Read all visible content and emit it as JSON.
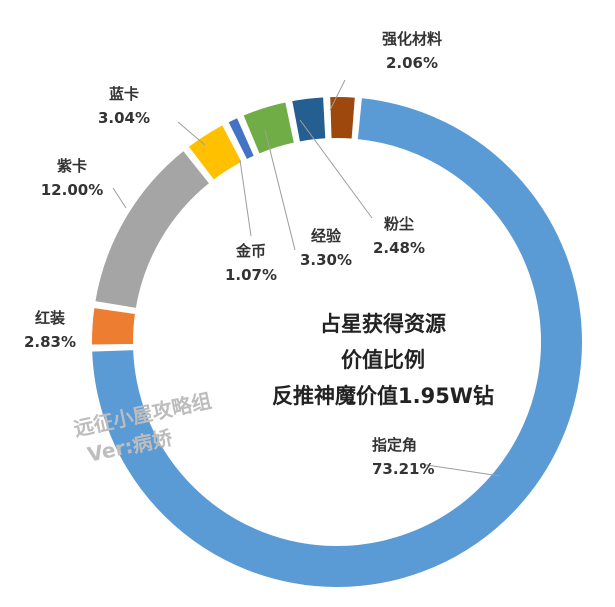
{
  "chart_data": {
    "type": "donut",
    "center_text": [
      "占星获得资源",
      "价值比例",
      "反推神魔价值1.95W钻"
    ],
    "series": [
      {
        "name": "指定角",
        "value": 73.21,
        "label": "73.21%",
        "color": "#5B9BD5"
      },
      {
        "name": "红装",
        "value": 2.83,
        "label": "2.83%",
        "color": "#ED7D31"
      },
      {
        "name": "紫卡",
        "value": 12.0,
        "label": "12.00%",
        "color": "#A5A5A5"
      },
      {
        "name": "蓝卡",
        "value": 3.04,
        "label": "3.04%",
        "color": "#FFC000"
      },
      {
        "name": "金币",
        "value": 1.07,
        "label": "1.07%",
        "color": "#4472C4"
      },
      {
        "name": "经验",
        "value": 3.3,
        "label": "3.30%",
        "color": "#70AD47"
      },
      {
        "name": "粉尘",
        "value": 2.48,
        "label": "2.48%",
        "color": "#255E91"
      },
      {
        "name": "强化材料",
        "value": 2.06,
        "label": "2.06%",
        "color": "#9E480E"
      }
    ]
  },
  "watermark": {
    "line1": "远征小屋攻略组",
    "line2": "Ver:病娇"
  }
}
